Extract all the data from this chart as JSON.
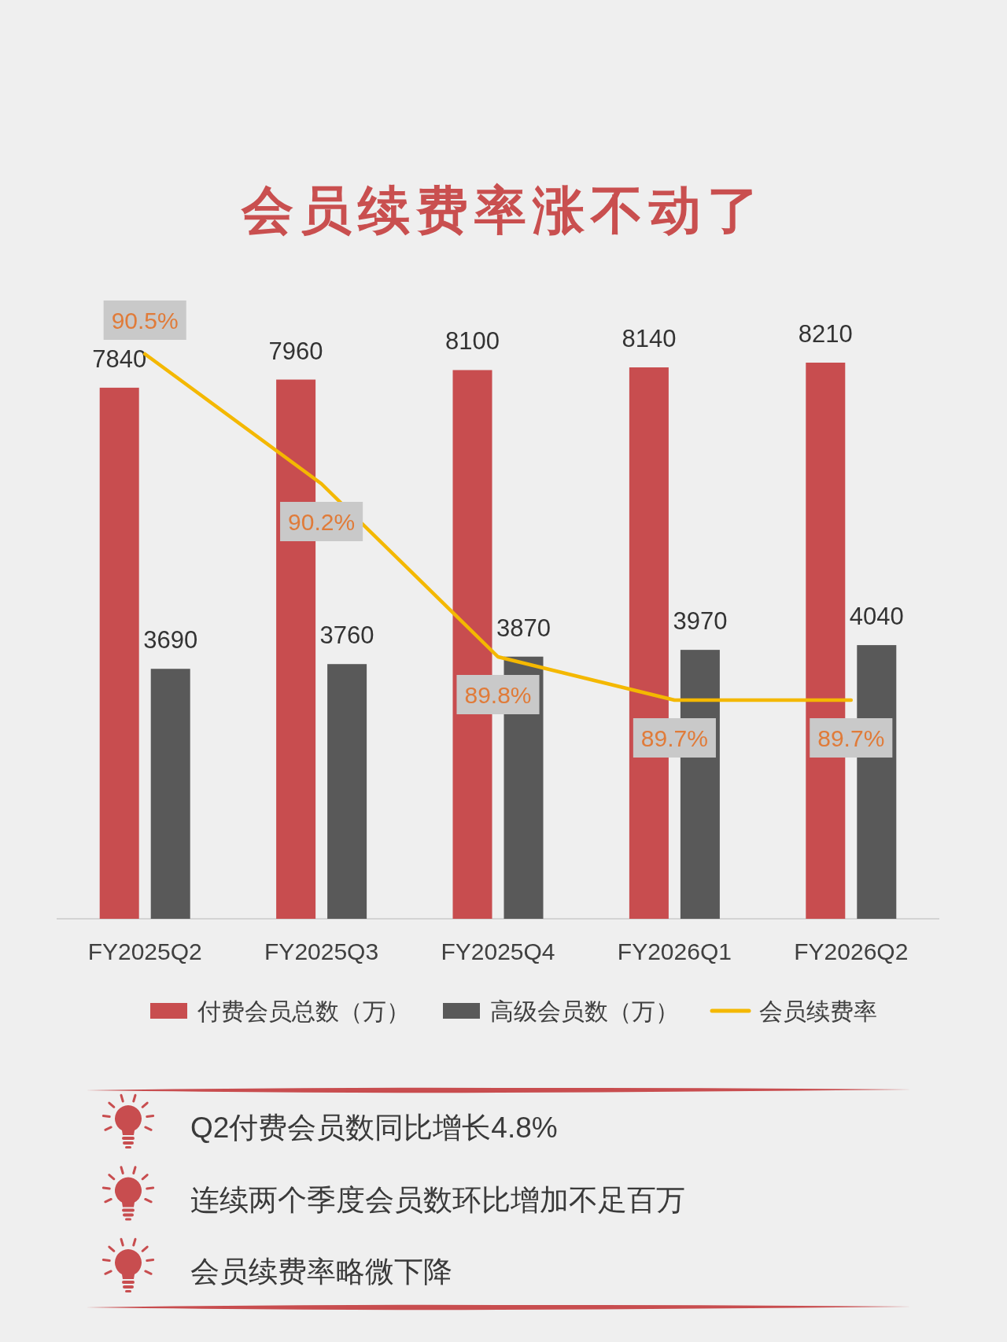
{
  "chart_data": {
    "type": "bar",
    "title": "会员续费率涨不动了",
    "categories": [
      "FY2025Q2",
      "FY2025Q3",
      "FY2025Q4",
      "FY2026Q1",
      "FY2026Q2"
    ],
    "series": [
      {
        "name": "付费会员总数（万）",
        "color": "#c84d4f",
        "values": [
          7840,
          7960,
          8100,
          8140,
          8210
        ]
      },
      {
        "name": "高级会员数（万）",
        "color": "#595959",
        "values": [
          3690,
          3760,
          3870,
          3970,
          4040
        ]
      },
      {
        "name": "会员续费率",
        "type": "line",
        "axis": "y2",
        "color": "#f4b800",
        "values": [
          90.5,
          90.2,
          89.8,
          89.7,
          89.7
        ],
        "value_labels": [
          "90.5%",
          "90.2%",
          "89.8%",
          "89.7%",
          "89.7%"
        ]
      }
    ],
    "data_labels": true,
    "tick_labels": "x",
    "legend": "bottom",
    "annotations": [
      "Q2付费会员数同比增长4.8%",
      "连续两个季度会员数环比增加不足百万",
      "会员续费率略微下降"
    ]
  }
}
